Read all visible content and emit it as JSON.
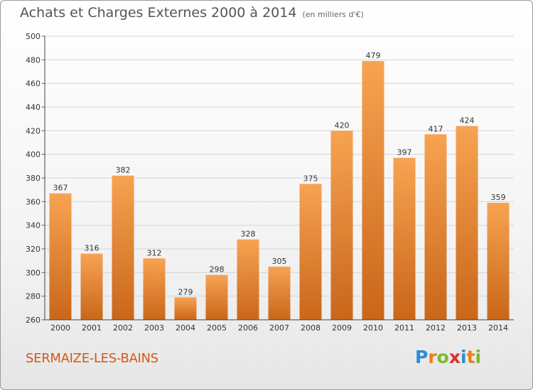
{
  "header": {
    "title": "Achats et Charges Externes 2000 à 2014",
    "subtitle": "(en milliers d'€)"
  },
  "footer": {
    "city": "SERMAIZE-LES-BAINS",
    "logo": {
      "letters": [
        "P",
        "r",
        "o",
        "x",
        "i",
        "t",
        "i"
      ],
      "colors": [
        "#2a8bd6",
        "#ef7d1a",
        "#7cb82f",
        "#d92f2f",
        "#2a8bd6",
        "#ef7d1a",
        "#7cb82f"
      ]
    }
  },
  "chart_data": {
    "type": "bar",
    "title": "Achats et Charges Externes 2000 à 2014",
    "subtitle": "(en milliers d'€)",
    "categories": [
      "2000",
      "2001",
      "2002",
      "2003",
      "2004",
      "2005",
      "2006",
      "2007",
      "2008",
      "2009",
      "2010",
      "2011",
      "2012",
      "2013",
      "2014"
    ],
    "values": [
      367,
      316,
      382,
      312,
      279,
      298,
      328,
      305,
      375,
      420,
      479,
      397,
      417,
      424,
      359
    ],
    "ylim": [
      260,
      500
    ],
    "yticks": [
      260,
      280,
      300,
      320,
      340,
      360,
      380,
      400,
      420,
      440,
      460,
      480,
      500
    ],
    "grid": true,
    "bar_color_top": "#f7a352",
    "bar_color_bottom": "#c9661a"
  }
}
